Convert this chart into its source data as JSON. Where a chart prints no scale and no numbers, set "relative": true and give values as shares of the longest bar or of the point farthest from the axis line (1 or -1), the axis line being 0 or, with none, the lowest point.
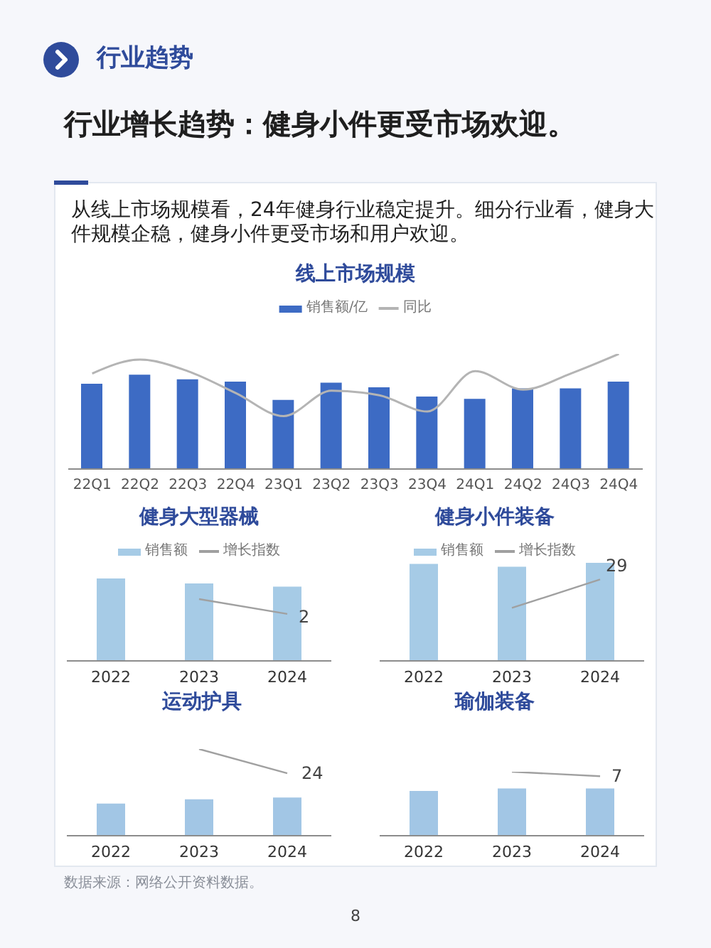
{
  "chart_data": [
    {
      "type": "bar",
      "title": "线上市场规模",
      "categories": [
        "22Q1",
        "22Q2",
        "22Q3",
        "22Q4",
        "23Q1",
        "23Q2",
        "23Q3",
        "23Q4",
        "24Q1",
        "24Q2",
        "24Q3",
        "24Q4"
      ],
      "relative": true,
      "series": [
        {
          "name": "销售额/亿",
          "color": "#3d6bc4",
          "values": [
            0.74,
            0.82,
            0.78,
            0.76,
            0.6,
            0.75,
            0.71,
            0.63,
            0.61,
            0.7,
            0.7,
            0.76
          ]
        },
        {
          "name": "同比",
          "type": "line",
          "color": "#b4b4b4",
          "values": [
            0.83,
            0.95,
            0.85,
            0.66,
            0.46,
            0.68,
            0.64,
            0.5,
            0.85,
            0.69,
            0.83,
            1
          ]
        }
      ],
      "legend": "top",
      "marker": "none",
      "annotations": [
        "行业趋势",
        "行业增长趋势：健身小件更受市场欢迎。",
        "从线上市场规模看，24年健身行业稳定提升。细分行业看，健身大件规模企稳，健身小件更受市场和用户欢迎。"
      ]
    },
    {
      "type": "bar",
      "title": "健身大型器械",
      "categories": [
        "2022",
        "2023",
        "2024"
      ],
      "relative": true,
      "series": [
        {
          "name": "销售额",
          "color": "#a6cbe6",
          "values": [
            1,
            0.94,
            0.9
          ]
        },
        {
          "name": "增长指数",
          "type": "line",
          "color": "#a0a0a0",
          "values": [
            null,
            0.75,
            0.57
          ]
        }
      ],
      "legend": "top",
      "marker": "none",
      "annotations": [
        {
          "text": "2",
          "x": "2024",
          "y": 0.57
        }
      ]
    },
    {
      "type": "bar",
      "title": "健身小件装备",
      "categories": [
        "2022",
        "2023",
        "2024"
      ],
      "relative": true,
      "series": [
        {
          "name": "销售额",
          "color": "#a6cbe6",
          "values": [
            0.99,
            0.96,
            1
          ]
        },
        {
          "name": "增长指数",
          "type": "line",
          "color": "#a0a0a0",
          "values": [
            null,
            0.54,
            0.83
          ]
        }
      ],
      "legend": "top",
      "marker": "none",
      "annotations": [
        {
          "text": "29",
          "x": "2024",
          "y": 0.83
        }
      ]
    },
    {
      "type": "bar",
      "title": "运动护具",
      "categories": [
        "2022",
        "2023",
        "2024"
      ],
      "relative": true,
      "series": [
        {
          "color": "#a2c6e5",
          "values": [
            0.37,
            0.42,
            0.44
          ]
        },
        {
          "type": "line",
          "color": "#a0a0a0",
          "values": [
            null,
            1,
            0.72
          ]
        }
      ],
      "marker": "none",
      "annotations": [
        {
          "text": "24",
          "x": "2024",
          "y": 0.72
        },
        "数据来源：网络公开资料数据。",
        "8"
      ]
    },
    {
      "type": "bar",
      "title": "瑜伽装备",
      "categories": [
        "2022",
        "2023",
        "2024"
      ],
      "relative": true,
      "series": [
        {
          "color": "#a2c6e5",
          "values": [
            0.7,
            0.74,
            0.74
          ]
        },
        {
          "type": "line",
          "color": "#a0a0a0",
          "values": [
            null,
            1,
            0.93
          ]
        }
      ],
      "marker": "none",
      "annotations": [
        {
          "text": "7",
          "x": "2024",
          "y": 0.93
        }
      ]
    }
  ]
}
